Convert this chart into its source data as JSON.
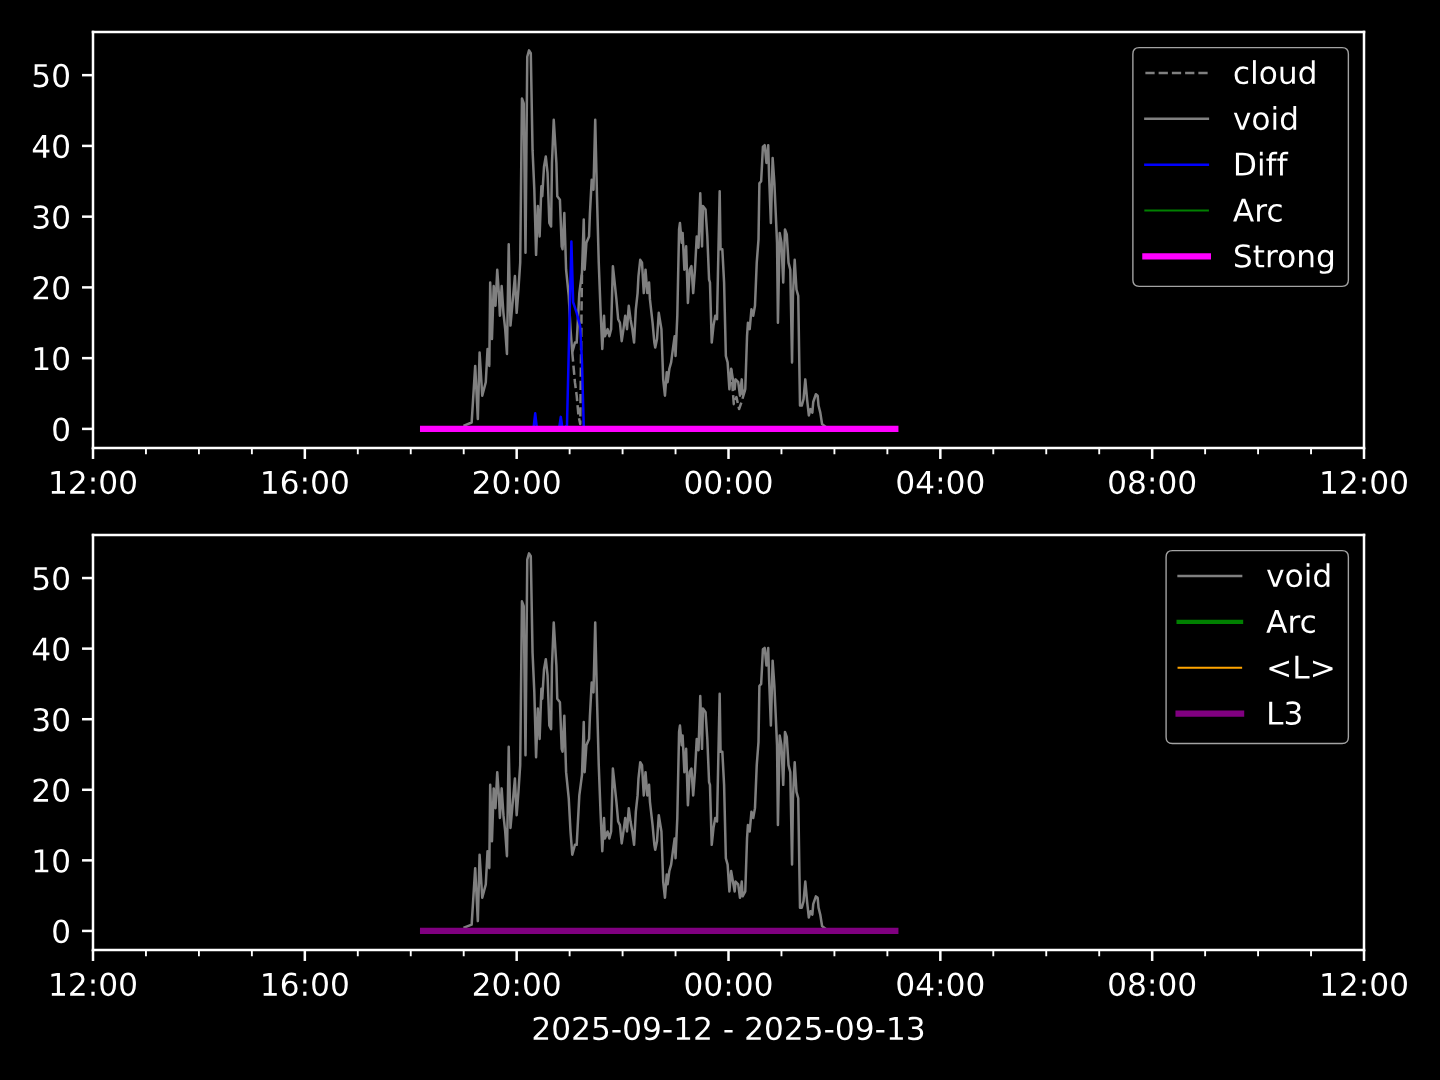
{
  "chart_data": [
    {
      "type": "line",
      "xlim": [
        "2025-09-12T12:00",
        "2025-09-13T12:00"
      ],
      "ylim": [
        -2.7,
        56.1
      ],
      "xticks": [
        {
          "value": "2025-09-12T12:00",
          "label": "12:00"
        },
        {
          "value": "2025-09-12T13:00",
          "label": null
        },
        {
          "value": "2025-09-12T14:00",
          "label": null
        },
        {
          "value": "2025-09-12T15:00",
          "label": null
        },
        {
          "value": "2025-09-12T16:00",
          "label": "16:00"
        },
        {
          "value": "2025-09-12T17:00",
          "label": null
        },
        {
          "value": "2025-09-12T18:00",
          "label": null
        },
        {
          "value": "2025-09-12T19:00",
          "label": null
        },
        {
          "value": "2025-09-12T20:00",
          "label": "20:00"
        },
        {
          "value": "2025-09-12T21:00",
          "label": null
        },
        {
          "value": "2025-09-12T22:00",
          "label": null
        },
        {
          "value": "2025-09-12T23:00",
          "label": null
        },
        {
          "value": "2025-09-13T00:00",
          "label": "00:00"
        },
        {
          "value": "2025-09-13T01:00",
          "label": null
        },
        {
          "value": "2025-09-13T02:00",
          "label": null
        },
        {
          "value": "2025-09-13T03:00",
          "label": null
        },
        {
          "value": "2025-09-13T04:00",
          "label": "04:00"
        },
        {
          "value": "2025-09-13T05:00",
          "label": null
        },
        {
          "value": "2025-09-13T06:00",
          "label": null
        },
        {
          "value": "2025-09-13T07:00",
          "label": null
        },
        {
          "value": "2025-09-13T08:00",
          "label": "08:00"
        },
        {
          "value": "2025-09-13T09:00",
          "label": null
        },
        {
          "value": "2025-09-13T10:00",
          "label": null
        },
        {
          "value": "2025-09-13T11:00",
          "label": null
        },
        {
          "value": "2025-09-13T12:00",
          "label": "12:00"
        }
      ],
      "yticks": [
        0,
        10,
        20,
        30,
        40,
        50
      ],
      "legend": "top right",
      "series": [
        {
          "name": "cloud",
          "color": "#808080",
          "line_style": "dashed",
          "x": [
            "2025-09-12T21:03",
            "2025-09-12T21:04",
            "2025-09-12T21:06",
            "2025-09-12T21:08",
            "2025-09-12T21:10",
            "2025-09-12T21:12",
            "2025-09-12T21:14",
            "2025-09-12T22:40",
            "2025-09-13T00:03",
            "2025-09-13T00:06",
            "2025-09-13T00:09",
            "2025-09-13T00:12",
            "2025-09-13T00:15",
            "2025-09-13T00:19"
          ],
          "values": [
            10.8,
            9.4,
            6.6,
            4.7,
            1.9,
            0.7,
            22.1,
            null,
            8.5,
            3.5,
            4.5,
            2.8,
            3.9,
            5.6
          ]
        },
        {
          "name": "void",
          "color": "#808080",
          "x": [
            "2025-09-12T19:01",
            "2025-09-12T19:09",
            "2025-09-12T19:13",
            "2025-09-12T19:16",
            "2025-09-12T19:18",
            "2025-09-12T19:21",
            "2025-09-12T19:25",
            "2025-09-12T19:27",
            "2025-09-12T19:29",
            "2025-09-12T19:30",
            "2025-09-12T19:32",
            "2025-09-12T19:34",
            "2025-09-12T19:36",
            "2025-09-12T19:38",
            "2025-09-12T19:40",
            "2025-09-12T19:41",
            "2025-09-12T19:43",
            "2025-09-12T19:45",
            "2025-09-12T19:47",
            "2025-09-12T19:49",
            "2025-09-12T19:51",
            "2025-09-12T19:53",
            "2025-09-12T19:56",
            "2025-09-12T19:58",
            "2025-09-12T20:00",
            "2025-09-12T20:02",
            "2025-09-12T20:04",
            "2025-09-12T20:06",
            "2025-09-12T20:08",
            "2025-09-12T20:10",
            "2025-09-12T20:12",
            "2025-09-12T20:14",
            "2025-09-12T20:16",
            "2025-09-12T20:18",
            "2025-09-12T20:20",
            "2025-09-12T20:22",
            "2025-09-12T20:24",
            "2025-09-12T20:26",
            "2025-09-12T20:28",
            "2025-09-12T20:29",
            "2025-09-12T20:31",
            "2025-09-12T20:33",
            "2025-09-12T20:35",
            "2025-09-12T20:37",
            "2025-09-12T20:39",
            "2025-09-12T20:40",
            "2025-09-12T20:42",
            "2025-09-12T20:45",
            "2025-09-12T20:46",
            "2025-09-12T20:49",
            "2025-09-12T20:51",
            "2025-09-12T20:52",
            "2025-09-12T20:54",
            "2025-09-12T20:56",
            "2025-09-12T20:59",
            "2025-09-12T21:01",
            "2025-09-12T21:03",
            "2025-09-12T21:06",
            "2025-09-12T21:08",
            "2025-09-12T21:11",
            "2025-09-12T21:14",
            "2025-09-12T21:16",
            "2025-09-12T21:17",
            "2025-09-12T21:19",
            "2025-09-12T21:22",
            "2025-09-12T21:23",
            "2025-09-12T21:25",
            "2025-09-12T21:27",
            "2025-09-12T21:29",
            "2025-09-12T21:31",
            "2025-09-12T21:33",
            "2025-09-12T21:35",
            "2025-09-12T21:37",
            "2025-09-12T21:39",
            "2025-09-12T21:40",
            "2025-09-12T21:43",
            "2025-09-12T21:45",
            "2025-09-12T21:47",
            "2025-09-12T21:49",
            "2025-09-12T21:51",
            "2025-09-12T21:53",
            "2025-09-12T21:55",
            "2025-09-12T21:57",
            "2025-09-12T21:59",
            "2025-09-12T22:01",
            "2025-09-12T22:03",
            "2025-09-12T22:05",
            "2025-09-12T22:07",
            "2025-09-12T22:09",
            "2025-09-12T22:11",
            "2025-09-12T22:13",
            "2025-09-12T22:15",
            "2025-09-12T22:17",
            "2025-09-12T22:18",
            "2025-09-12T22:20",
            "2025-09-12T22:22",
            "2025-09-12T22:24",
            "2025-09-12T22:26",
            "2025-09-12T22:28",
            "2025-09-12T22:30",
            "2025-09-12T22:31",
            "2025-09-12T22:34",
            "2025-09-12T22:36",
            "2025-09-12T22:37",
            "2025-09-12T22:39",
            "2025-09-12T22:41",
            "2025-09-12T22:44",
            "2025-09-12T22:46",
            "2025-09-12T22:48",
            "2025-09-12T22:50",
            "2025-09-12T22:51",
            "2025-09-12T22:53",
            "2025-09-12T22:55",
            "2025-09-12T22:57",
            "2025-09-12T22:59",
            "2025-09-12T23:00",
            "2025-09-12T23:02",
            "2025-09-12T23:04",
            "2025-09-12T23:05",
            "2025-09-12T23:07",
            "2025-09-12T23:08",
            "2025-09-12T23:10",
            "2025-09-12T23:12",
            "2025-09-12T23:14",
            "2025-09-12T23:16",
            "2025-09-12T23:18",
            "2025-09-12T23:20",
            "2025-09-12T23:22",
            "2025-09-12T23:24",
            "2025-09-12T23:26",
            "2025-09-12T23:28",
            "2025-09-12T23:30",
            "2025-09-12T23:31",
            "2025-09-12T23:34",
            "2025-09-12T23:36",
            "2025-09-12T23:38",
            "2025-09-12T23:39",
            "2025-09-12T23:41",
            "2025-09-12T23:43",
            "2025-09-12T23:45",
            "2025-09-12T23:47",
            "2025-09-12T23:48",
            "2025-09-12T23:50",
            "2025-09-12T23:51",
            "2025-09-12T23:53",
            "2025-09-12T23:55",
            "2025-09-12T23:57",
            "2025-09-12T23:59",
            "2025-09-13T00:01",
            "2025-09-13T00:03",
            "2025-09-13T00:05",
            "2025-09-13T00:07",
            "2025-09-13T00:08",
            "2025-09-13T00:11",
            "2025-09-13T00:13",
            "2025-09-13T00:15",
            "2025-09-13T00:16",
            "2025-09-13T00:19",
            "2025-09-13T00:21",
            "2025-09-13T00:22",
            "2025-09-13T00:24",
            "2025-09-13T00:26",
            "2025-09-13T00:28",
            "2025-09-13T00:30",
            "2025-09-13T00:32",
            "2025-09-13T00:34",
            "2025-09-13T00:35",
            "2025-09-13T00:37",
            "2025-09-13T00:39",
            "2025-09-13T00:41",
            "2025-09-13T00:43",
            "2025-09-13T00:45",
            "2025-09-13T00:46",
            "2025-09-13T00:48",
            "2025-09-13T00:50",
            "2025-09-13T00:52",
            "2025-09-13T00:53",
            "2025-09-13T00:55",
            "2025-09-13T00:56",
            "2025-09-13T00:58",
            "2025-09-13T01:00",
            "2025-09-13T01:02",
            "2025-09-13T01:04",
            "2025-09-13T01:06",
            "2025-09-13T01:08",
            "2025-09-13T01:10",
            "2025-09-13T01:12",
            "2025-09-13T01:13",
            "2025-09-13T01:15",
            "2025-09-13T01:17",
            "2025-09-13T01:19",
            "2025-09-13T01:21",
            "2025-09-13T01:23",
            "2025-09-13T01:25",
            "2025-09-13T01:27",
            "2025-09-13T01:29",
            "2025-09-13T01:31",
            "2025-09-13T01:33",
            "2025-09-13T01:35",
            "2025-09-13T01:36",
            "2025-09-13T01:39",
            "2025-09-13T01:41",
            "2025-09-13T01:42",
            "2025-09-13T01:44",
            "2025-09-13T01:46",
            "2025-09-13T01:48",
            "2025-09-13T01:51"
          ],
          "values": [
            0.5,
            0.9,
            8.9,
            1.4,
            10.8,
            4.7,
            6.6,
            11.3,
            8.9,
            20.7,
            12.7,
            20.2,
            17.4,
            22.5,
            18.8,
            16.0,
            20.2,
            16.4,
            14.1,
            10.6,
            26.1,
            14.6,
            18.8,
            21.6,
            16.4,
            19.7,
            23.5,
            46.7,
            46.0,
            24.9,
            52.6,
            53.5,
            53.1,
            39.4,
            33.8,
            24.6,
            31.5,
            27.2,
            34.3,
            32.9,
            37.1,
            38.5,
            36.2,
            29.1,
            28.6,
            37.6,
            43.7,
            37.6,
            32.9,
            32.4,
            25.8,
            25.4,
            30.5,
            22.5,
            18.8,
            14.1,
            10.8,
            12.2,
            12.2,
            19.2,
            22.1,
            29.6,
            22.5,
            26.3,
            27.2,
            30.5,
            35.2,
            33.8,
            43.7,
            32.9,
            23.5,
            16.9,
            11.3,
            16.0,
            13.1,
            14.1,
            13.1,
            14.1,
            23.0,
            20.7,
            18.3,
            15.5,
            15.0,
            12.4,
            14.1,
            16.0,
            14.1,
            17.4,
            15.5,
            14.1,
            12.2,
            16.9,
            19.2,
            21.6,
            23.9,
            23.5,
            19.2,
            22.5,
            19.2,
            20.7,
            18.3,
            15.0,
            12.2,
            11.5,
            12.7,
            16.4,
            14.1,
            7.0,
            4.7,
            8.0,
            6.6,
            8.5,
            9.4,
            11.3,
            13.1,
            10.3,
            16.0,
            28.2,
            29.1,
            26.3,
            27.7,
            22.5,
            25.8,
            17.8,
            22.5,
            23.0,
            19.2,
            22.5,
            27.2,
            25.6,
            33.3,
            25.8,
            31.5,
            31.0,
            27.2,
            21.1,
            20.7,
            12.2,
            14.6,
            16.0,
            15.5,
            21.6,
            33.6,
            25.4,
            25.4,
            20.7,
            10.3,
            9.4,
            5.6,
            8.5,
            7.0,
            5.6,
            7.0,
            6.6,
            4.7,
            7.0,
            4.9,
            5.6,
            13.1,
            15.0,
            14.1,
            16.9,
            16.0,
            17.4,
            23.5,
            26.8,
            34.7,
            35.0,
            39.9,
            40.1,
            37.6,
            40.1,
            35.7,
            29.1,
            38.3,
            34.7,
            31.9,
            26.3,
            15.0,
            27.7,
            26.3,
            20.7,
            28.2,
            27.5,
            23.5,
            22.5,
            9.4,
            18.8,
            23.9,
            19.7,
            18.8,
            3.3,
            3.3,
            4.2,
            7.0,
            4.2,
            1.9,
            2.8,
            2.3,
            3.8,
            4.9,
            4.7,
            3.3,
            2.3,
            0.7,
            0.5,
            0.2
          ]
        },
        {
          "name": "Diff",
          "color": "#0000ff",
          "x": [
            "2025-09-12T20:19",
            "2025-09-12T20:21",
            "2025-09-12T20:23",
            "2025-09-12T20:35",
            "2025-09-12T20:48",
            "2025-09-12T20:50",
            "2025-09-12T20:52",
            "2025-09-12T20:57",
            "2025-09-12T21:02",
            "2025-09-12T21:04",
            "2025-09-12T21:08",
            "2025-09-12T21:12",
            "2025-09-12T21:14",
            "2025-09-12T21:16"
          ],
          "values": [
            0,
            2.2,
            0,
            null,
            0,
            1.7,
            0,
            0.5,
            26.5,
            17.9,
            16.4,
            14.5,
            9.4,
            0.3
          ]
        },
        {
          "name": "Arc",
          "color": "#008000"
        },
        {
          "name": "Strong",
          "color": "#ff00ff",
          "x": [
            "2025-09-12T18:14",
            "2025-09-13T03:09"
          ],
          "values": [
            0,
            0
          ]
        }
      ]
    },
    {
      "type": "line",
      "xlabel": "2025-09-12 - 2025-09-13",
      "xlim": [
        "2025-09-12T12:00",
        "2025-09-13T12:00"
      ],
      "ylim": [
        -2.7,
        56.1
      ],
      "xticks": [
        {
          "value": "2025-09-12T12:00",
          "label": "12:00"
        },
        {
          "value": "2025-09-12T13:00",
          "label": null
        },
        {
          "value": "2025-09-12T14:00",
          "label": null
        },
        {
          "value": "2025-09-12T15:00",
          "label": null
        },
        {
          "value": "2025-09-12T16:00",
          "label": "16:00"
        },
        {
          "value": "2025-09-12T17:00",
          "label": null
        },
        {
          "value": "2025-09-12T18:00",
          "label": null
        },
        {
          "value": "2025-09-12T19:00",
          "label": null
        },
        {
          "value": "2025-09-12T20:00",
          "label": "20:00"
        },
        {
          "value": "2025-09-12T21:00",
          "label": null
        },
        {
          "value": "2025-09-12T22:00",
          "label": null
        },
        {
          "value": "2025-09-12T23:00",
          "label": null
        },
        {
          "value": "2025-09-13T00:00",
          "label": "00:00"
        },
        {
          "value": "2025-09-13T01:00",
          "label": null
        },
        {
          "value": "2025-09-13T02:00",
          "label": null
        },
        {
          "value": "2025-09-13T03:00",
          "label": null
        },
        {
          "value": "2025-09-13T04:00",
          "label": "04:00"
        },
        {
          "value": "2025-09-13T05:00",
          "label": null
        },
        {
          "value": "2025-09-13T06:00",
          "label": null
        },
        {
          "value": "2025-09-13T07:00",
          "label": null
        },
        {
          "value": "2025-09-13T08:00",
          "label": "08:00"
        },
        {
          "value": "2025-09-13T09:00",
          "label": null
        },
        {
          "value": "2025-09-13T10:00",
          "label": null
        },
        {
          "value": "2025-09-13T11:00",
          "label": null
        },
        {
          "value": "2025-09-13T12:00",
          "label": "12:00"
        }
      ],
      "yticks": [
        0,
        10,
        20,
        30,
        40,
        50
      ],
      "legend": "top right",
      "series": [
        {
          "name": "void",
          "color": "#808080",
          "x": [
            "2025-09-12T19:01",
            "2025-09-12T19:09",
            "2025-09-12T19:13",
            "2025-09-12T19:16",
            "2025-09-12T19:18",
            "2025-09-12T19:21",
            "2025-09-12T19:25",
            "2025-09-12T19:27",
            "2025-09-12T19:29",
            "2025-09-12T19:30",
            "2025-09-12T19:32",
            "2025-09-12T19:34",
            "2025-09-12T19:36",
            "2025-09-12T19:38",
            "2025-09-12T19:40",
            "2025-09-12T19:41",
            "2025-09-12T19:43",
            "2025-09-12T19:45",
            "2025-09-12T19:47",
            "2025-09-12T19:49",
            "2025-09-12T19:51",
            "2025-09-12T19:53",
            "2025-09-12T19:56",
            "2025-09-12T19:58",
            "2025-09-12T20:00",
            "2025-09-12T20:02",
            "2025-09-12T20:04",
            "2025-09-12T20:06",
            "2025-09-12T20:08",
            "2025-09-12T20:10",
            "2025-09-12T20:12",
            "2025-09-12T20:14",
            "2025-09-12T20:16",
            "2025-09-12T20:18",
            "2025-09-12T20:20",
            "2025-09-12T20:22",
            "2025-09-12T20:24",
            "2025-09-12T20:26",
            "2025-09-12T20:28",
            "2025-09-12T20:29",
            "2025-09-12T20:31",
            "2025-09-12T20:33",
            "2025-09-12T20:35",
            "2025-09-12T20:37",
            "2025-09-12T20:39",
            "2025-09-12T20:40",
            "2025-09-12T20:42",
            "2025-09-12T20:45",
            "2025-09-12T20:46",
            "2025-09-12T20:49",
            "2025-09-12T20:51",
            "2025-09-12T20:52",
            "2025-09-12T20:54",
            "2025-09-12T20:56",
            "2025-09-12T20:59",
            "2025-09-12T21:01",
            "2025-09-12T21:03",
            "2025-09-12T21:06",
            "2025-09-12T21:08",
            "2025-09-12T21:11",
            "2025-09-12T21:14",
            "2025-09-12T21:16",
            "2025-09-12T21:17",
            "2025-09-12T21:19",
            "2025-09-12T21:22",
            "2025-09-12T21:23",
            "2025-09-12T21:25",
            "2025-09-12T21:27",
            "2025-09-12T21:29",
            "2025-09-12T21:31",
            "2025-09-12T21:33",
            "2025-09-12T21:35",
            "2025-09-12T21:37",
            "2025-09-12T21:39",
            "2025-09-12T21:40",
            "2025-09-12T21:43",
            "2025-09-12T21:45",
            "2025-09-12T21:47",
            "2025-09-12T21:49",
            "2025-09-12T21:51",
            "2025-09-12T21:53",
            "2025-09-12T21:55",
            "2025-09-12T21:57",
            "2025-09-12T21:59",
            "2025-09-12T22:01",
            "2025-09-12T22:03",
            "2025-09-12T22:05",
            "2025-09-12T22:07",
            "2025-09-12T22:09",
            "2025-09-12T22:11",
            "2025-09-12T22:13",
            "2025-09-12T22:15",
            "2025-09-12T22:17",
            "2025-09-12T22:18",
            "2025-09-12T22:20",
            "2025-09-12T22:22",
            "2025-09-12T22:24",
            "2025-09-12T22:26",
            "2025-09-12T22:28",
            "2025-09-12T22:30",
            "2025-09-12T22:31",
            "2025-09-12T22:34",
            "2025-09-12T22:36",
            "2025-09-12T22:37",
            "2025-09-12T22:39",
            "2025-09-12T22:41",
            "2025-09-12T22:44",
            "2025-09-12T22:46",
            "2025-09-12T22:48",
            "2025-09-12T22:50",
            "2025-09-12T22:51",
            "2025-09-12T22:53",
            "2025-09-12T22:55",
            "2025-09-12T22:57",
            "2025-09-12T22:59",
            "2025-09-12T23:00",
            "2025-09-12T23:02",
            "2025-09-12T23:04",
            "2025-09-12T23:05",
            "2025-09-12T23:07",
            "2025-09-12T23:08",
            "2025-09-12T23:10",
            "2025-09-12T23:12",
            "2025-09-12T23:14",
            "2025-09-12T23:16",
            "2025-09-12T23:18",
            "2025-09-12T23:20",
            "2025-09-12T23:22",
            "2025-09-12T23:24",
            "2025-09-12T23:26",
            "2025-09-12T23:28",
            "2025-09-12T23:30",
            "2025-09-12T23:31",
            "2025-09-12T23:34",
            "2025-09-12T23:36",
            "2025-09-12T23:38",
            "2025-09-12T23:39",
            "2025-09-12T23:41",
            "2025-09-12T23:43",
            "2025-09-12T23:45",
            "2025-09-12T23:47",
            "2025-09-12T23:48",
            "2025-09-12T23:50",
            "2025-09-12T23:51",
            "2025-09-12T23:53",
            "2025-09-12T23:55",
            "2025-09-12T23:57",
            "2025-09-12T23:59",
            "2025-09-13T00:01",
            "2025-09-13T00:03",
            "2025-09-13T00:05",
            "2025-09-13T00:07",
            "2025-09-13T00:08",
            "2025-09-13T00:11",
            "2025-09-13T00:13",
            "2025-09-13T00:15",
            "2025-09-13T00:16",
            "2025-09-13T00:19",
            "2025-09-13T00:21",
            "2025-09-13T00:22",
            "2025-09-13T00:24",
            "2025-09-13T00:26",
            "2025-09-13T00:28",
            "2025-09-13T00:30",
            "2025-09-13T00:32",
            "2025-09-13T00:34",
            "2025-09-13T00:35",
            "2025-09-13T00:37",
            "2025-09-13T00:39",
            "2025-09-13T00:41",
            "2025-09-13T00:43",
            "2025-09-13T00:45",
            "2025-09-13T00:46",
            "2025-09-13T00:48",
            "2025-09-13T00:50",
            "2025-09-13T00:52",
            "2025-09-13T00:53",
            "2025-09-13T00:55",
            "2025-09-13T00:56",
            "2025-09-13T00:58",
            "2025-09-13T01:00",
            "2025-09-13T01:02",
            "2025-09-13T01:04",
            "2025-09-13T01:06",
            "2025-09-13T01:08",
            "2025-09-13T01:10",
            "2025-09-13T01:12",
            "2025-09-13T01:13",
            "2025-09-13T01:15",
            "2025-09-13T01:17",
            "2025-09-13T01:19",
            "2025-09-13T01:21",
            "2025-09-13T01:23",
            "2025-09-13T01:25",
            "2025-09-13T01:27",
            "2025-09-13T01:29",
            "2025-09-13T01:31",
            "2025-09-13T01:33",
            "2025-09-13T01:35",
            "2025-09-13T01:36",
            "2025-09-13T01:39",
            "2025-09-13T01:41",
            "2025-09-13T01:42",
            "2025-09-13T01:44",
            "2025-09-13T01:46",
            "2025-09-13T01:48",
            "2025-09-13T01:51"
          ],
          "values": [
            0.5,
            0.9,
            8.9,
            1.4,
            10.8,
            4.7,
            6.6,
            11.3,
            8.9,
            20.7,
            12.7,
            20.2,
            17.4,
            22.5,
            18.8,
            16.0,
            20.2,
            16.4,
            14.1,
            10.6,
            26.1,
            14.6,
            18.8,
            21.6,
            16.4,
            19.7,
            23.5,
            46.7,
            46.0,
            24.9,
            52.6,
            53.5,
            53.1,
            39.4,
            33.8,
            24.6,
            31.5,
            27.2,
            34.3,
            32.9,
            37.1,
            38.5,
            36.2,
            29.1,
            28.6,
            37.6,
            43.7,
            37.6,
            32.9,
            32.4,
            25.8,
            25.4,
            30.5,
            22.5,
            18.8,
            14.1,
            10.8,
            12.2,
            12.2,
            19.2,
            22.1,
            29.6,
            22.5,
            26.3,
            27.2,
            30.5,
            35.2,
            33.8,
            43.7,
            32.9,
            23.5,
            16.9,
            11.3,
            16.0,
            13.1,
            14.1,
            13.1,
            14.1,
            23.0,
            20.7,
            18.3,
            15.5,
            15.0,
            12.4,
            14.1,
            16.0,
            14.1,
            17.4,
            15.5,
            14.1,
            12.2,
            16.9,
            19.2,
            21.6,
            23.9,
            23.5,
            19.2,
            22.5,
            19.2,
            20.7,
            18.3,
            15.0,
            12.2,
            11.5,
            12.7,
            16.4,
            14.1,
            7.0,
            4.7,
            8.0,
            6.6,
            8.5,
            9.4,
            11.3,
            13.1,
            10.3,
            16.0,
            28.2,
            29.1,
            26.3,
            27.7,
            22.5,
            25.8,
            17.8,
            22.5,
            23.0,
            19.2,
            22.5,
            27.2,
            25.6,
            33.3,
            25.8,
            31.5,
            31.0,
            27.2,
            21.1,
            20.7,
            12.2,
            14.6,
            16.0,
            15.5,
            21.6,
            33.6,
            25.4,
            25.4,
            20.7,
            10.3,
            9.4,
            5.6,
            8.5,
            7.0,
            5.6,
            7.0,
            6.6,
            4.7,
            7.0,
            4.9,
            5.6,
            13.1,
            15.0,
            14.1,
            16.9,
            16.0,
            17.4,
            23.5,
            26.8,
            34.7,
            35.0,
            39.9,
            40.1,
            37.6,
            40.1,
            35.7,
            29.1,
            38.3,
            34.7,
            31.9,
            26.3,
            15.0,
            27.7,
            26.3,
            20.7,
            28.2,
            27.5,
            23.5,
            22.5,
            9.4,
            18.8,
            23.9,
            19.7,
            18.8,
            3.3,
            3.3,
            4.2,
            7.0,
            4.2,
            1.9,
            2.8,
            2.3,
            3.8,
            4.9,
            4.7,
            3.3,
            2.3,
            0.7,
            0.5,
            0.2
          ]
        },
        {
          "name": "Arc",
          "color": "#008000"
        },
        {
          "name": "<L>",
          "color": "#ffa500"
        },
        {
          "name": "L3",
          "color": "#800080",
          "x": [
            "2025-09-12T18:14",
            "2025-09-13T03:09"
          ],
          "values": [
            0,
            0
          ]
        }
      ]
    }
  ]
}
